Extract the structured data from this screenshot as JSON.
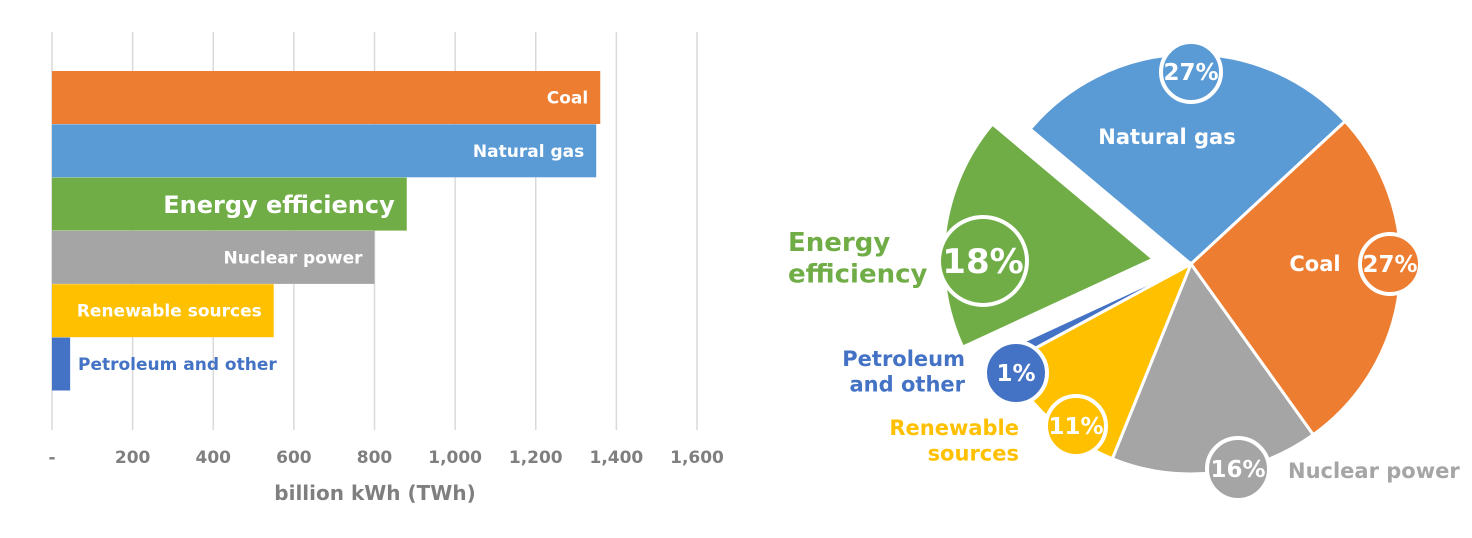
{
  "chart_data": [
    {
      "type": "bar",
      "orientation": "horizontal",
      "categories": [
        "Coal",
        "Natural gas",
        "Energy efficiency",
        "Nuclear power",
        "Renewable sources",
        "Petroleum and other"
      ],
      "values": [
        1360,
        1350,
        880,
        800,
        550,
        45
      ],
      "colors": [
        "#ED7D31",
        "#5B9BD5",
        "#70AD47",
        "#A5A5A5",
        "#FFC000",
        "#4472C4"
      ],
      "label_colors": [
        "#ffffff",
        "#ffffff",
        "#ffffff",
        "#ffffff",
        "#ffffff",
        "#4472C4"
      ],
      "xlabel": "billion kWh (TWh)",
      "xlim": [
        0,
        1600
      ],
      "ticks": [
        0,
        200,
        400,
        600,
        800,
        1000,
        1200,
        1400,
        1600
      ],
      "tick_labels": [
        "-",
        "200",
        "400",
        "600",
        "800",
        "1,000",
        "1,200",
        "1,400",
        "1,600"
      ],
      "grid": "vertical"
    },
    {
      "type": "pie",
      "slices": [
        {
          "label": "Natural gas",
          "value": 27,
          "pct": "27%",
          "color": "#5B9BD5"
        },
        {
          "label": "Coal",
          "value": 27,
          "pct": "27%",
          "color": "#ED7D31"
        },
        {
          "label": "Nuclear power",
          "value": 16,
          "pct": "16%",
          "color": "#A5A5A5"
        },
        {
          "label": "Renewable sources",
          "value": 11,
          "pct": "11%",
          "color": "#FFC000"
        },
        {
          "label": "Petroleum and other",
          "value": 1,
          "pct": "1%",
          "color": "#4472C4"
        },
        {
          "label": "Energy efficiency",
          "value": 18,
          "pct": "18%",
          "color": "#70AD47",
          "exploded": true
        }
      ]
    }
  ]
}
